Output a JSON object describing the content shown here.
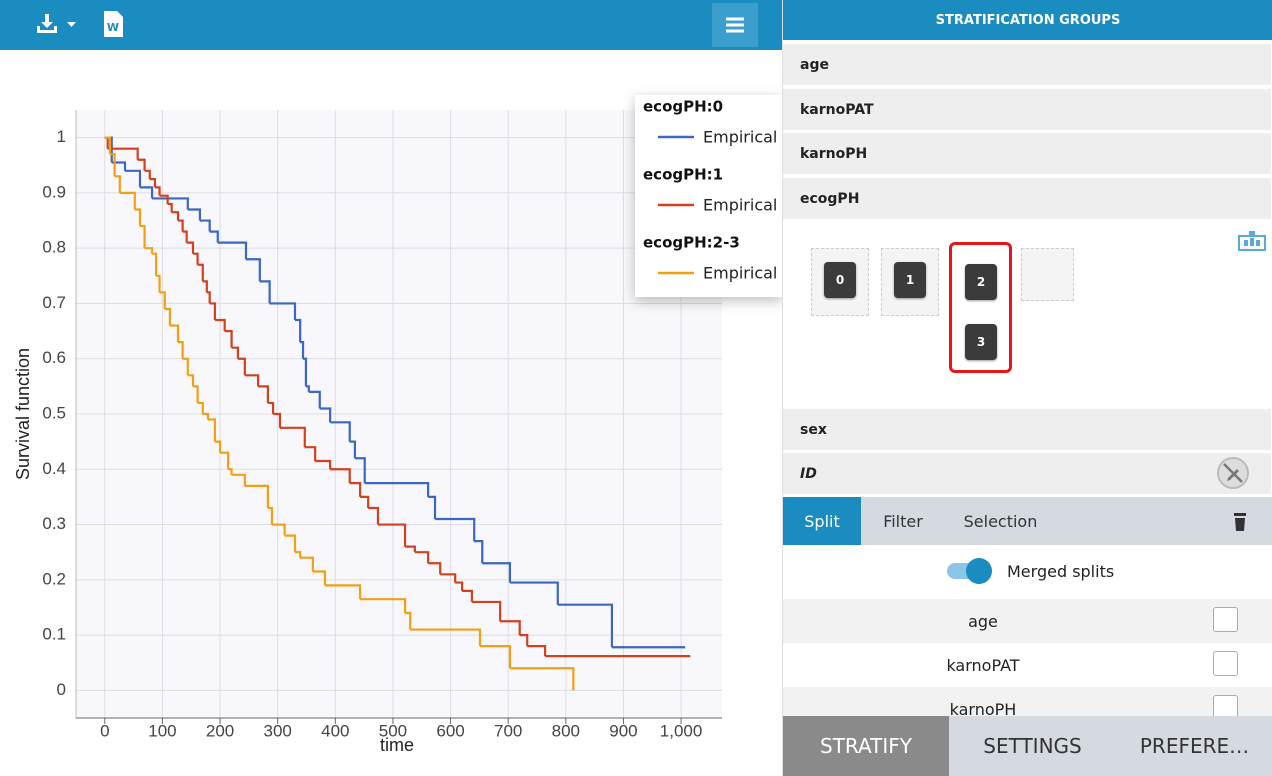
{
  "toolbar": {
    "doc_icon_letter": "W"
  },
  "chart_data": {
    "type": "line",
    "drawstyle": "steps-post",
    "x_label": "time",
    "y_label": "Survival function",
    "xlim": [
      -50,
      1071
    ],
    "ylim": [
      -0.05,
      1.05
    ],
    "xticks": [
      0,
      100,
      200,
      300,
      400,
      500,
      600,
      700,
      800,
      900,
      {
        "value": 1000,
        "label": "1,000"
      }
    ],
    "yticks": [
      0,
      0.1,
      0.2,
      0.3,
      0.4,
      0.5,
      0.6,
      0.7,
      0.8,
      0.9,
      1
    ],
    "grid": true,
    "legend_position": "top-right",
    "series": [
      {
        "group": "ecogPH:0",
        "name": "Empirical",
        "color": "#3a66c4",
        "x": [
          0,
          12,
          35,
          61,
          82,
          144,
          165,
          182,
          196,
          245,
          269,
          286,
          330,
          339,
          344,
          349,
          354,
          373,
          391,
          425,
          434,
          451,
          561,
          573,
          641,
          655,
          703,
          786,
          880,
          1007
        ],
        "values": [
          1,
          0.955,
          0.94,
          0.91,
          0.89,
          0.87,
          0.85,
          0.83,
          0.81,
          0.78,
          0.74,
          0.7,
          0.67,
          0.63,
          0.6,
          0.55,
          0.54,
          0.51,
          0.485,
          0.45,
          0.42,
          0.375,
          0.35,
          0.31,
          0.27,
          0.23,
          0.195,
          0.155,
          0.078,
          0.078
        ]
      },
      {
        "group": "ecogPH:1",
        "name": "Empirical",
        "color": "#d2401e",
        "x": [
          0,
          5,
          57,
          69,
          78,
          87,
          95,
          109,
          116,
          127,
          135,
          142,
          153,
          161,
          170,
          177,
          182,
          191,
          208,
          220,
          231,
          243,
          266,
          283,
          292,
          304,
          347,
          365,
          391,
          425,
          443,
          457,
          474,
          521,
          538,
          561,
          582,
          608,
          620,
          637,
          686,
          720,
          733,
          764,
          1016
        ],
        "values": [
          1,
          0.98,
          0.96,
          0.94,
          0.925,
          0.91,
          0.895,
          0.88,
          0.865,
          0.85,
          0.83,
          0.81,
          0.79,
          0.77,
          0.74,
          0.72,
          0.7,
          0.67,
          0.65,
          0.62,
          0.6,
          0.57,
          0.55,
          0.52,
          0.5,
          0.475,
          0.44,
          0.415,
          0.4,
          0.375,
          0.35,
          0.33,
          0.3,
          0.26,
          0.25,
          0.23,
          0.21,
          0.195,
          0.18,
          0.16,
          0.125,
          0.1,
          0.08,
          0.062,
          0.062
        ]
      },
      {
        "group": "ecogPH:2-3",
        "name": "Empirical",
        "color": "#f2a012",
        "x": [
          0,
          9,
          17,
          26,
          52,
          61,
          69,
          82,
          89,
          95,
          104,
          113,
          127,
          135,
          144,
          153,
          161,
          170,
          179,
          191,
          200,
          214,
          220,
          243,
          283,
          290,
          312,
          330,
          339,
          361,
          382,
          443,
          521,
          530,
          651,
          703,
          813
        ],
        "values": [
          1,
          0.97,
          0.93,
          0.9,
          0.87,
          0.84,
          0.8,
          0.79,
          0.75,
          0.72,
          0.69,
          0.66,
          0.63,
          0.6,
          0.57,
          0.55,
          0.52,
          0.5,
          0.49,
          0.45,
          0.43,
          0.4,
          0.39,
          0.37,
          0.33,
          0.3,
          0.28,
          0.25,
          0.24,
          0.215,
          0.19,
          0.165,
          0.14,
          0.11,
          0.08,
          0.04,
          0
        ]
      }
    ]
  },
  "sidebar": {
    "title": "STRATIFICATION GROUPS",
    "variables": [
      "age",
      "karnoPAT",
      "karnoPH",
      "ecogPH"
    ],
    "groups": [
      [
        "0"
      ],
      [
        "1"
      ],
      [
        "2",
        "3"
      ]
    ],
    "other_variables": [
      "sex",
      "ID"
    ],
    "tabs": [
      "Split",
      "Filter",
      "Selection"
    ],
    "toggle_label": "Merged splits",
    "split_rows": [
      "age",
      "karnoPAT",
      "karnoPH"
    ],
    "bottom_tabs": [
      "STRATIFY",
      "SETTINGS",
      "PREFERE…"
    ]
  }
}
